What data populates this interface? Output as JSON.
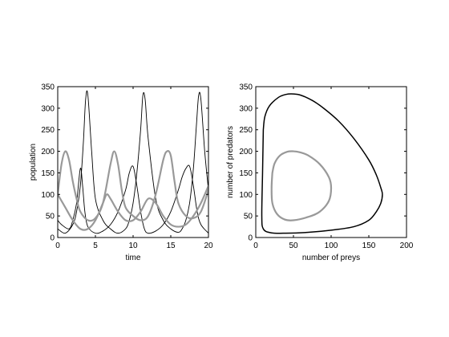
{
  "chart_data": [
    {
      "type": "line",
      "title": "",
      "xlabel": "time",
      "ylabel": "population",
      "xlim": [
        0,
        20
      ],
      "ylim": [
        0,
        350
      ],
      "xticks": [
        0,
        5,
        10,
        15,
        20
      ],
      "yticks": [
        0,
        50,
        100,
        150,
        200,
        250,
        300,
        350
      ],
      "grid": false,
      "legend": "none",
      "series": [
        {
          "color": "#000000",
          "x": [
            0,
            1,
            2,
            2.5,
            3.0,
            3.4,
            3.7,
            4.0,
            4.5,
            5,
            6,
            7,
            8,
            9,
            9.5,
            10,
            10.5,
            11,
            11.3,
            11.6,
            12,
            13,
            14,
            15,
            16,
            16.5,
            17,
            17.5,
            18,
            18.4,
            18.7,
            19,
            19.5,
            20
          ],
          "y": [
            20,
            10,
            30,
            60,
            120,
            220,
            320,
            330,
            200,
            90,
            40,
            20,
            10,
            20,
            40,
            80,
            150,
            250,
            330,
            320,
            230,
            90,
            40,
            20,
            12,
            20,
            40,
            80,
            160,
            260,
            330,
            320,
            200,
            110
          ]
        },
        {
          "color": "#000000",
          "x": [
            0,
            0.5,
            1.5,
            2,
            2.5,
            3.0,
            3.3,
            3.6,
            4,
            5,
            6,
            7,
            8,
            9,
            9.5,
            10,
            10.5,
            11,
            11.5,
            12,
            13,
            14,
            15,
            16,
            16.5,
            17,
            17.5,
            18,
            18.5,
            19,
            20
          ],
          "y": [
            40,
            30,
            20,
            40,
            80,
            160,
            120,
            60,
            25,
            10,
            15,
            30,
            60,
            110,
            150,
            165,
            120,
            60,
            20,
            10,
            15,
            30,
            60,
            110,
            140,
            160,
            165,
            120,
            60,
            30,
            10
          ]
        },
        {
          "color": "#999999",
          "x": [
            0,
            0.5,
            1,
            1.5,
            2,
            2.5,
            3,
            4,
            5,
            6,
            7,
            7.5,
            8,
            8.5,
            9,
            10,
            11,
            12,
            13,
            14,
            14.5,
            15,
            15.5,
            16,
            17,
            18,
            19,
            20
          ],
          "y": [
            100,
            170,
            200,
            180,
            130,
            90,
            60,
            40,
            45,
            80,
            170,
            200,
            170,
            110,
            70,
            50,
            40,
            50,
            100,
            180,
            200,
            190,
            130,
            80,
            50,
            45,
            60,
            110
          ]
        },
        {
          "color": "#999999",
          "x": [
            0,
            1,
            2,
            3,
            4,
            5,
            6,
            6.5,
            7,
            8,
            9,
            10,
            11,
            12,
            13,
            14,
            15,
            16,
            17,
            18,
            19,
            20
          ],
          "y": [
            100,
            70,
            40,
            20,
            20,
            40,
            80,
            100,
            90,
            60,
            40,
            40,
            60,
            90,
            80,
            50,
            30,
            25,
            30,
            50,
            80,
            120
          ]
        }
      ]
    },
    {
      "type": "line",
      "title": "",
      "xlabel": "number of preys",
      "ylabel": "number of predators",
      "xlim": [
        0,
        200
      ],
      "ylim": [
        0,
        350
      ],
      "xticks": [
        0,
        50,
        100,
        150,
        200
      ],
      "yticks": [
        0,
        50,
        100,
        150,
        200,
        250,
        300,
        350
      ],
      "grid": false,
      "legend": "none",
      "series": [
        {
          "color": "#000000",
          "x": [
            10,
            12,
            18,
            30,
            40,
            50,
            60,
            75,
            90,
            110,
            130,
            150,
            160,
            166,
            168,
            166,
            160,
            150,
            130,
            100,
            70,
            40,
            20,
            10,
            8,
            9,
            10
          ],
          "y": [
            250,
            280,
            305,
            325,
            332,
            333,
            330,
            318,
            300,
            270,
            230,
            180,
            145,
            115,
            100,
            80,
            60,
            40,
            25,
            17,
            12,
            10,
            11,
            20,
            50,
            150,
            250
          ]
        },
        {
          "color": "#999999",
          "x": [
            22,
            25,
            32,
            42,
            50,
            58,
            70,
            85,
            97,
            100,
            97,
            85,
            70,
            50,
            38,
            28,
            22,
            21,
            22
          ],
          "y": [
            150,
            172,
            190,
            199,
            200,
            198,
            190,
            170,
            140,
            115,
            85,
            60,
            48,
            40,
            42,
            55,
            80,
            115,
            150
          ]
        }
      ]
    }
  ]
}
